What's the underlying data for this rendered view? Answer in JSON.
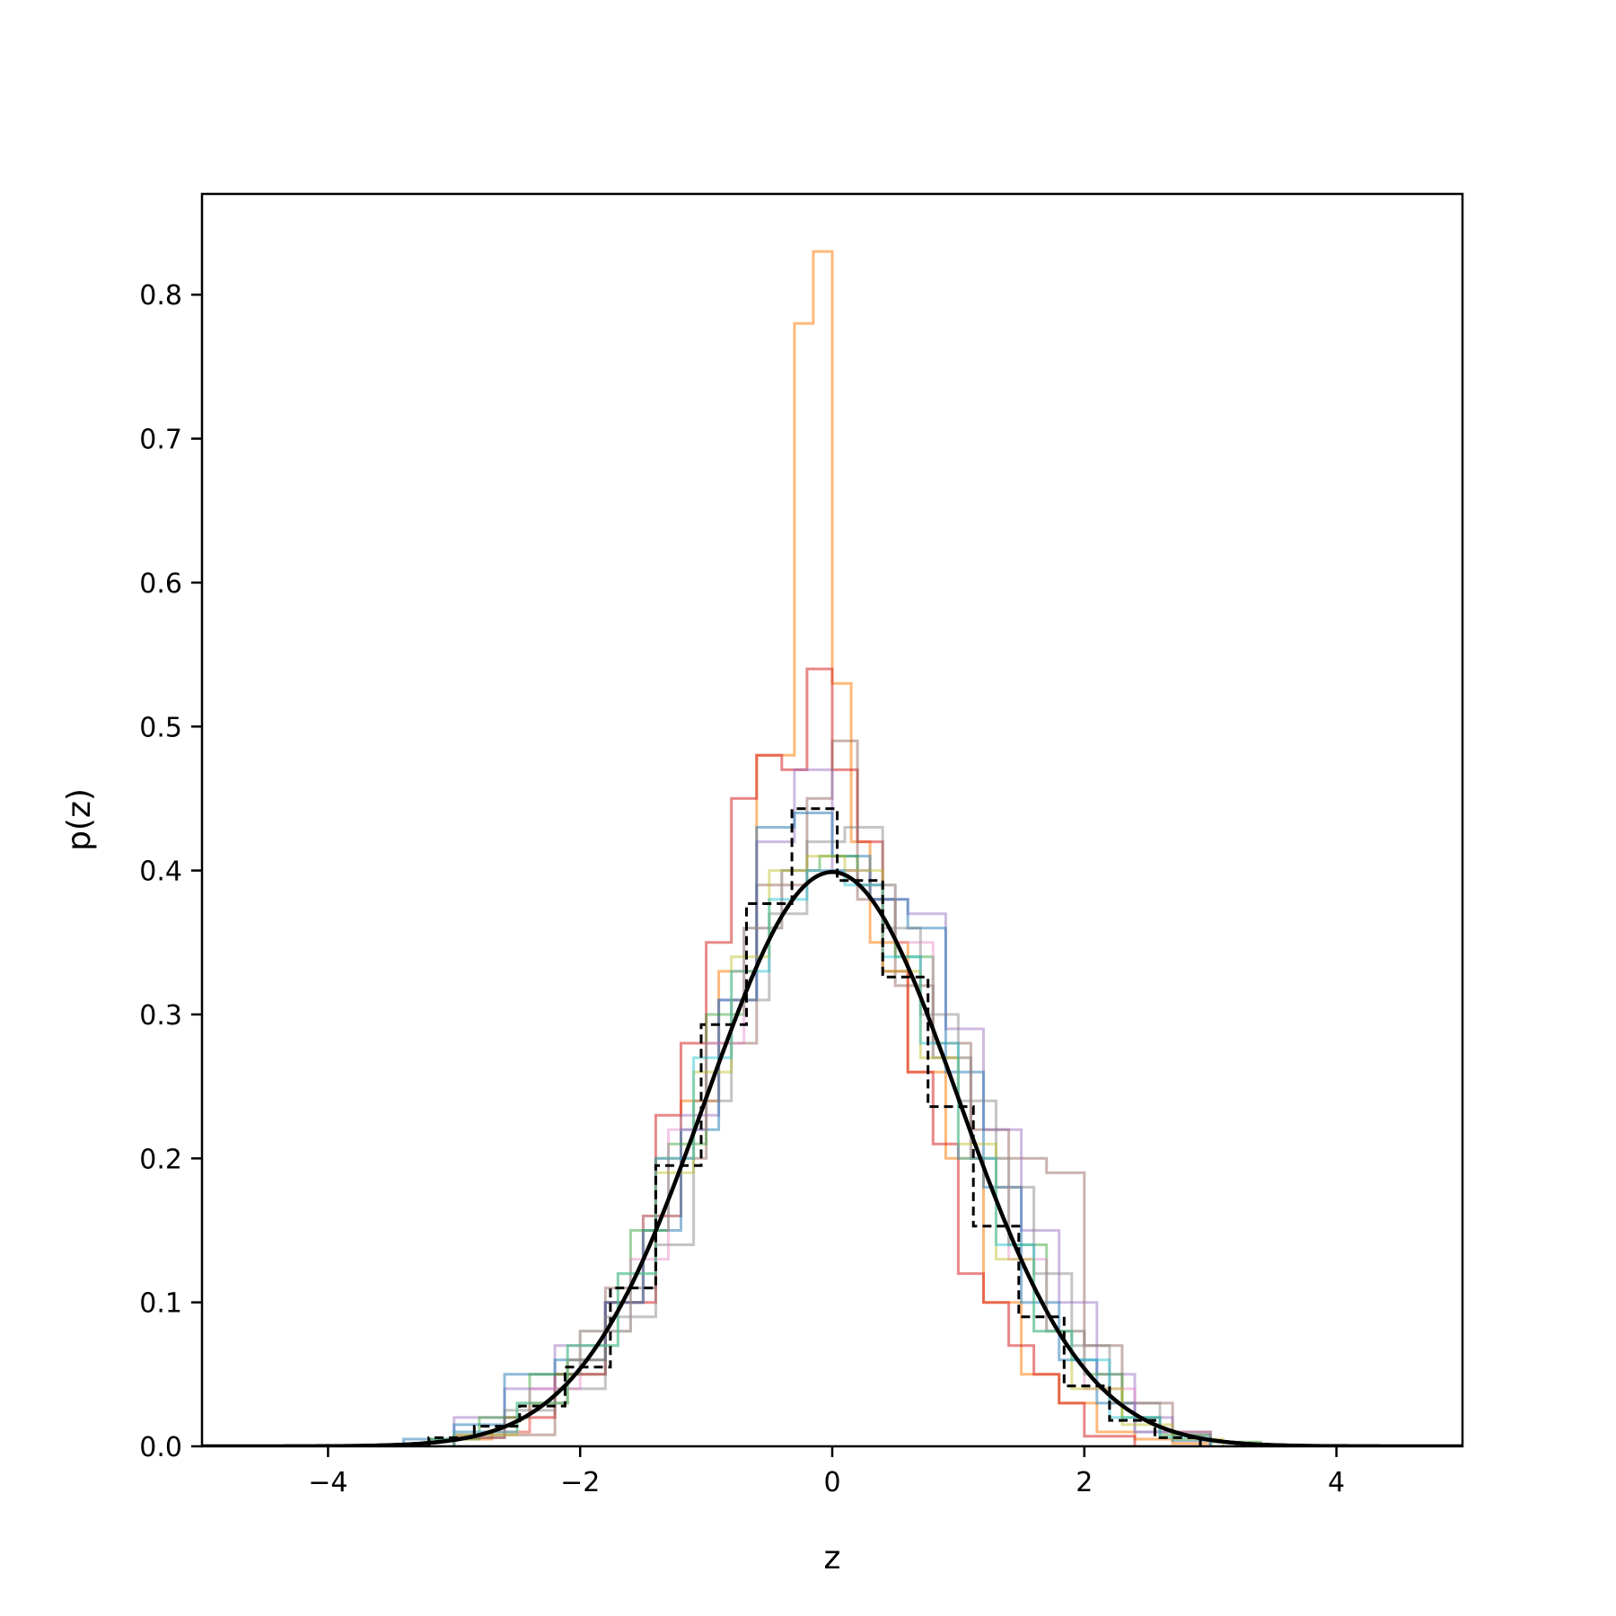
{
  "chart_data": {
    "type": "line",
    "title": "",
    "xlabel": "z",
    "ylabel": "p(z)",
    "xlim": [
      -5,
      5
    ],
    "ylim": [
      0,
      0.87
    ],
    "xticks": [
      -4,
      -2,
      0,
      2,
      4
    ],
    "xtick_labels": [
      "−4",
      "−2",
      "0",
      "2",
      "4"
    ],
    "yticks": [
      0.0,
      0.1,
      0.2,
      0.3,
      0.4,
      0.5,
      0.6,
      0.7,
      0.8
    ],
    "ytick_labels": [
      "0.0",
      "0.1",
      "0.2",
      "0.3",
      "0.4",
      "0.5",
      "0.6",
      "0.7",
      "0.8"
    ],
    "grid": false,
    "legend": "none",
    "reference_curve": {
      "kind": "standard normal density",
      "mean": 0,
      "std": 1,
      "color": "#000000",
      "peak": 0.399
    },
    "reference_histogram": {
      "style": "dashed",
      "color": "#000000",
      "edges": [
        -3.2,
        -2.84,
        -2.48,
        -2.12,
        -1.76,
        -1.4,
        -1.04,
        -0.68,
        -0.32,
        0.04,
        0.4,
        0.76,
        1.12,
        1.48,
        1.84,
        2.2,
        2.56,
        2.92
      ],
      "values": [
        0.006,
        0.014,
        0.028,
        0.055,
        0.11,
        0.195,
        0.293,
        0.377,
        0.443,
        0.393,
        0.326,
        0.236,
        0.153,
        0.09,
        0.042,
        0.018,
        0.006
      ]
    },
    "histograms": [
      {
        "color": "#ff7f0e",
        "opacity": 0.55,
        "edges": [
          -3.0,
          -2.7,
          -2.4,
          -2.1,
          -1.8,
          -1.5,
          -1.2,
          -0.9,
          -0.6,
          -0.3,
          -0.15,
          0.0,
          0.15,
          0.3,
          0.6,
          0.9,
          1.2,
          1.5,
          1.8,
          2.1,
          2.4,
          2.7,
          3.0
        ],
        "values": [
          0.005,
          0.01,
          0.03,
          0.06,
          0.1,
          0.16,
          0.24,
          0.33,
          0.48,
          0.78,
          0.83,
          0.53,
          0.42,
          0.35,
          0.26,
          0.2,
          0.1,
          0.05,
          0.03,
          0.01,
          0.005,
          0.002
        ]
      },
      {
        "color": "#d62728",
        "opacity": 0.55,
        "edges": [
          -3.0,
          -2.6,
          -2.2,
          -1.8,
          -1.4,
          -1.2,
          -1.0,
          -0.8,
          -0.6,
          -0.4,
          -0.2,
          0.0,
          0.2,
          0.4,
          0.6,
          0.8,
          1.0,
          1.2,
          1.4,
          1.6,
          1.8,
          2.0,
          2.4
        ],
        "values": [
          0.006,
          0.02,
          0.05,
          0.1,
          0.23,
          0.28,
          0.35,
          0.45,
          0.48,
          0.47,
          0.54,
          0.47,
          0.42,
          0.33,
          0.26,
          0.21,
          0.12,
          0.1,
          0.07,
          0.05,
          0.03,
          0.007
        ]
      },
      {
        "color": "#8c564b",
        "opacity": 0.45,
        "edges": [
          -3.0,
          -2.2,
          -1.8,
          -1.4,
          -1.0,
          -0.6,
          -0.2,
          0.0,
          0.2,
          0.5,
          0.8,
          1.1,
          1.4,
          1.7,
          2.0,
          2.3,
          2.7,
          3.0
        ],
        "values": [
          0.008,
          0.05,
          0.11,
          0.2,
          0.28,
          0.39,
          0.45,
          0.49,
          0.38,
          0.32,
          0.28,
          0.22,
          0.2,
          0.19,
          0.07,
          0.03,
          0.01
        ]
      },
      {
        "color": "#9467bd",
        "opacity": 0.45,
        "edges": [
          -3.0,
          -2.6,
          -2.2,
          -1.8,
          -1.5,
          -1.2,
          -0.9,
          -0.6,
          -0.3,
          0.0,
          0.3,
          0.6,
          0.9,
          1.2,
          1.5,
          1.8,
          2.1,
          2.4,
          2.7,
          3.0
        ],
        "values": [
          0.02,
          0.04,
          0.07,
          0.1,
          0.16,
          0.23,
          0.31,
          0.42,
          0.47,
          0.4,
          0.38,
          0.37,
          0.29,
          0.22,
          0.15,
          0.1,
          0.05,
          0.02,
          0.008
        ]
      },
      {
        "color": "#1f77b4",
        "opacity": 0.5,
        "edges": [
          -3.4,
          -3.0,
          -2.6,
          -2.2,
          -1.8,
          -1.5,
          -1.2,
          -0.9,
          -0.6,
          -0.3,
          0.0,
          0.3,
          0.6,
          0.9,
          1.2,
          1.5,
          1.8,
          2.1,
          2.4,
          2.7,
          3.0
        ],
        "values": [
          0.005,
          0.015,
          0.05,
          0.06,
          0.1,
          0.15,
          0.22,
          0.31,
          0.43,
          0.44,
          0.41,
          0.38,
          0.36,
          0.26,
          0.18,
          0.1,
          0.06,
          0.03,
          0.01,
          0.004
        ]
      },
      {
        "color": "#2ca02c",
        "opacity": 0.45,
        "edges": [
          -3.2,
          -2.8,
          -2.4,
          -2.0,
          -1.6,
          -1.3,
          -1.0,
          -0.7,
          -0.4,
          -0.1,
          0.2,
          0.5,
          0.8,
          1.1,
          1.4,
          1.7,
          2.0,
          2.3,
          2.6,
          3.0,
          3.4
        ],
        "values": [
          0.005,
          0.02,
          0.05,
          0.08,
          0.15,
          0.21,
          0.3,
          0.36,
          0.4,
          0.41,
          0.39,
          0.34,
          0.27,
          0.2,
          0.14,
          0.08,
          0.05,
          0.02,
          0.008,
          0.003
        ]
      },
      {
        "color": "#7f7f7f",
        "opacity": 0.45,
        "edges": [
          -3.0,
          -2.6,
          -2.2,
          -1.8,
          -1.4,
          -1.1,
          -0.8,
          -0.5,
          -0.2,
          0.1,
          0.4,
          0.7,
          1.0,
          1.3,
          1.6,
          1.9,
          2.2,
          2.6,
          3.0
        ],
        "values": [
          0.006,
          0.025,
          0.04,
          0.09,
          0.14,
          0.24,
          0.31,
          0.37,
          0.42,
          0.43,
          0.36,
          0.3,
          0.24,
          0.18,
          0.12,
          0.07,
          0.03,
          0.01
        ]
      },
      {
        "color": "#e377c2",
        "opacity": 0.4,
        "edges": [
          -3.0,
          -2.4,
          -2.0,
          -1.6,
          -1.3,
          -1.0,
          -0.7,
          -0.4,
          -0.1,
          0.2,
          0.5,
          0.8,
          1.1,
          1.4,
          1.7,
          2.0,
          2.4,
          3.0
        ],
        "values": [
          0.01,
          0.04,
          0.08,
          0.13,
          0.22,
          0.28,
          0.36,
          0.4,
          0.4,
          0.39,
          0.35,
          0.27,
          0.2,
          0.13,
          0.08,
          0.04,
          0.01
        ]
      },
      {
        "color": "#bcbd22",
        "opacity": 0.45,
        "edges": [
          -3.0,
          -2.5,
          -2.1,
          -1.7,
          -1.4,
          -1.1,
          -0.8,
          -0.5,
          -0.2,
          0.1,
          0.4,
          0.7,
          1.0,
          1.3,
          1.6,
          1.9,
          2.3,
          2.7,
          3.1
        ],
        "values": [
          0.008,
          0.03,
          0.07,
          0.12,
          0.19,
          0.26,
          0.34,
          0.4,
          0.41,
          0.4,
          0.33,
          0.27,
          0.21,
          0.13,
          0.08,
          0.04,
          0.015,
          0.005
        ]
      },
      {
        "color": "#17becf",
        "opacity": 0.45,
        "edges": [
          -3.0,
          -2.5,
          -2.1,
          -1.7,
          -1.4,
          -1.1,
          -0.8,
          -0.5,
          -0.2,
          0.1,
          0.4,
          0.7,
          1.0,
          1.3,
          1.6,
          1.9,
          2.2,
          2.6,
          3.0
        ],
        "values": [
          0.01,
          0.03,
          0.07,
          0.12,
          0.2,
          0.27,
          0.33,
          0.38,
          0.4,
          0.39,
          0.34,
          0.28,
          0.2,
          0.14,
          0.08,
          0.06,
          0.02,
          0.006
        ]
      }
    ]
  }
}
